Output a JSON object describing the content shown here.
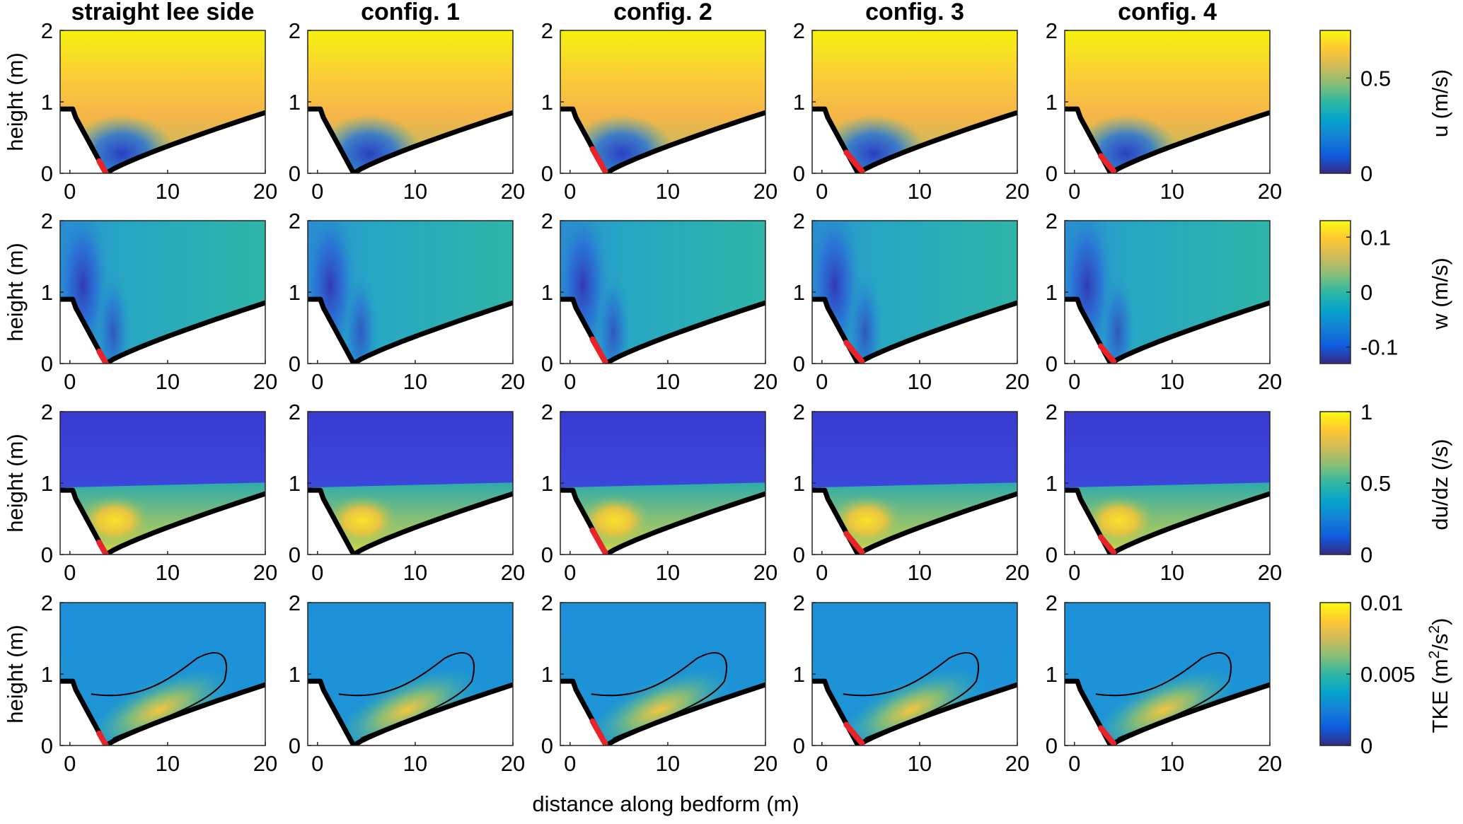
{
  "chart_data": {
    "type": "heatmap",
    "layout": "4 rows (variables) x 5 columns (configurations)",
    "column_titles": [
      "straight lee side",
      "config. 1",
      "config. 2",
      "config. 3",
      "config. 4"
    ],
    "xlabel": "distance along bedform (m)",
    "ylabel": "height (m)",
    "xlim": [
      -1,
      20
    ],
    "ylim": [
      0,
      2
    ],
    "x_ticks": [
      "0",
      "10",
      "20"
    ],
    "y_ticks": [
      "0",
      "1",
      "2"
    ],
    "bedform_profile": {
      "crest_x": 0,
      "crest_height": 0.9,
      "trough_x": 3.7,
      "trough_height": 0.0,
      "end_x": 20,
      "end_height": 0.85
    },
    "red_segment_x_ranges": [
      [
        3.0,
        3.7
      ],
      null,
      [
        2.3,
        3.6
      ],
      [
        2.5,
        4.1
      ],
      [
        2.7,
        4.0
      ]
    ],
    "panels": [
      {
        "variable": "u",
        "colorbar_label": "u (m/s)",
        "clim": [
          0,
          0.75
        ],
        "colorbar_ticks": [
          "0",
          "0.5"
        ],
        "summary": "high streamwise velocity above bedform, low-velocity recirculation zone in the lee trough"
      },
      {
        "variable": "w",
        "colorbar_label": "w (m/s)",
        "clim": [
          -0.13,
          0.13
        ],
        "colorbar_ticks": [
          "-0.1",
          "0",
          "0.1"
        ],
        "summary": "negative vertical velocity downstream of the crest, near zero elsewhere"
      },
      {
        "variable": "du/dz",
        "colorbar_label": "du/dz (/s)",
        "clim": [
          0,
          1
        ],
        "colorbar_ticks": [
          "0",
          "0.5",
          "1"
        ],
        "summary": "strong shear layer from crest into the trough and thin shear layer along the stoss bed"
      },
      {
        "variable": "TKE",
        "colorbar_label": "TKE (m²/s²)",
        "colorbar_label_base": "TKE (m",
        "colorbar_label_exp1": "2",
        "colorbar_label_mid": "/s",
        "colorbar_label_exp2": "2",
        "colorbar_label_end": ")",
        "clim": [
          0,
          0.01
        ],
        "colorbar_ticks": [
          "0",
          "0.005",
          "0.01"
        ],
        "summary": "turbulent kinetic energy maximum downstream of the trough, enclosed by a single contour line"
      }
    ]
  }
}
